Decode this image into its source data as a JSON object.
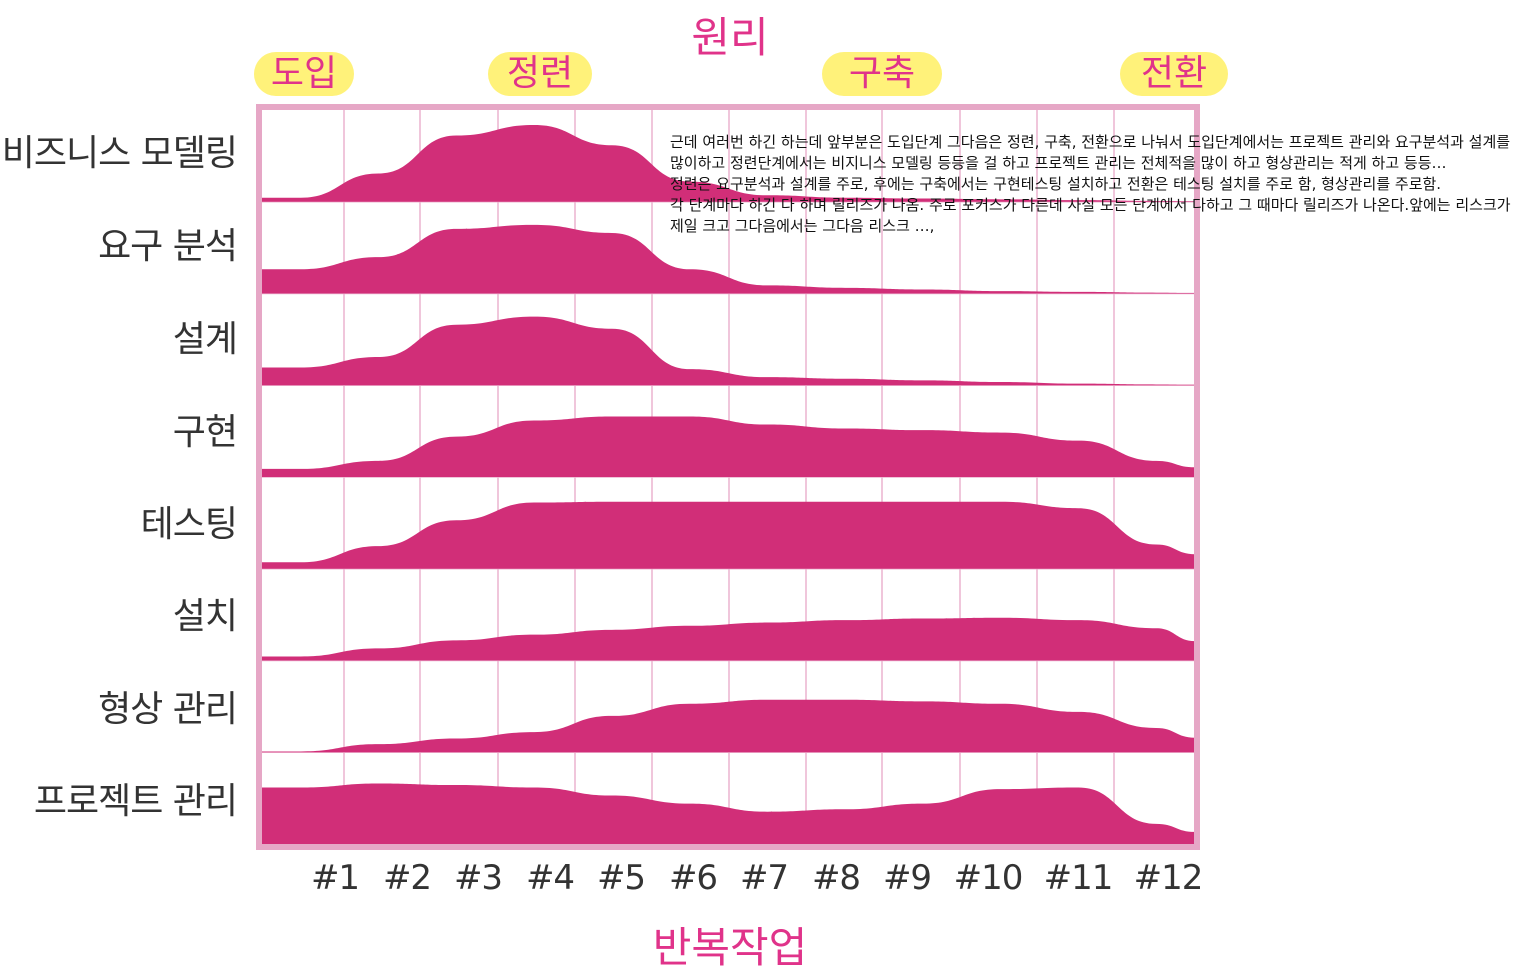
{
  "title": "원리",
  "xlabel": "반복작업",
  "phases": [
    "도입",
    "정련",
    "구축",
    "전환"
  ],
  "colors": {
    "accent": "#e0338a",
    "fill": "#d12e78",
    "frame": "#e6a7c6",
    "highlight": "#fff27a"
  },
  "note": {
    "line1": "근데 여러번 하긴 하는데 앞부분은 도입단계 그다음은 정련, 구축, 전환으로 나눠서 도입단계에서는 프로젝트 관리와 요구분석과 설계를 많이하고 정련단계에서는 비지니스 모델링 등등을  걸 하고 프로젝트 관리는 전체적을 많이 하고 형상관리는 적게 하고 등등…",
    "line2": "정련은 요구분석과 설계를 주로, 후에는 구축에서는 구현테스팅 설치하고 전환은 테스팅 설치를 주로 함, 형상관리를 주로함.",
    "line3": "각 단계마다 하긴 다 하며 릴리즈가 나옴. 주로 포커스가 다른데 사실 모든 단계에서 다하고 그 때마다 릴리즈가 나온다.앞에는 리스크가 제일 크고 그다음에서는 그다음 리스크 …,"
  },
  "chart_data": {
    "type": "area",
    "x": [
      "#1",
      "#2",
      "#3",
      "#4",
      "#5",
      "#6",
      "#7",
      "#8",
      "#9",
      "#10",
      "#11",
      "#12"
    ],
    "series": [
      {
        "name": "비즈니스 모델링",
        "values": [
          0.05,
          0.35,
          0.82,
          0.95,
          0.7,
          0.25,
          0.08,
          0.05,
          0.04,
          0.03,
          0.02,
          0.01
        ]
      },
      {
        "name": "요구 분석",
        "values": [
          0.3,
          0.45,
          0.8,
          0.85,
          0.75,
          0.3,
          0.1,
          0.07,
          0.05,
          0.03,
          0.02,
          0.01
        ]
      },
      {
        "name": "설계",
        "values": [
          0.22,
          0.35,
          0.75,
          0.85,
          0.7,
          0.2,
          0.1,
          0.08,
          0.06,
          0.04,
          0.02,
          0.01
        ]
      },
      {
        "name": "구현",
        "values": [
          0.1,
          0.2,
          0.5,
          0.7,
          0.75,
          0.75,
          0.65,
          0.6,
          0.58,
          0.55,
          0.45,
          0.2
        ]
      },
      {
        "name": "테스팅",
        "values": [
          0.08,
          0.28,
          0.6,
          0.82,
          0.83,
          0.83,
          0.83,
          0.83,
          0.83,
          0.83,
          0.75,
          0.3
        ]
      },
      {
        "name": "설치",
        "values": [
          0.05,
          0.15,
          0.25,
          0.32,
          0.38,
          0.43,
          0.47,
          0.5,
          0.52,
          0.53,
          0.5,
          0.4
        ]
      },
      {
        "name": "형상 관리",
        "values": [
          0.01,
          0.1,
          0.17,
          0.25,
          0.45,
          0.6,
          0.65,
          0.65,
          0.63,
          0.6,
          0.5,
          0.3
        ]
      },
      {
        "name": "프로젝트 관리",
        "values": [
          0.7,
          0.75,
          0.73,
          0.7,
          0.6,
          0.5,
          0.4,
          0.43,
          0.5,
          0.68,
          0.7,
          0.25
        ]
      }
    ]
  }
}
